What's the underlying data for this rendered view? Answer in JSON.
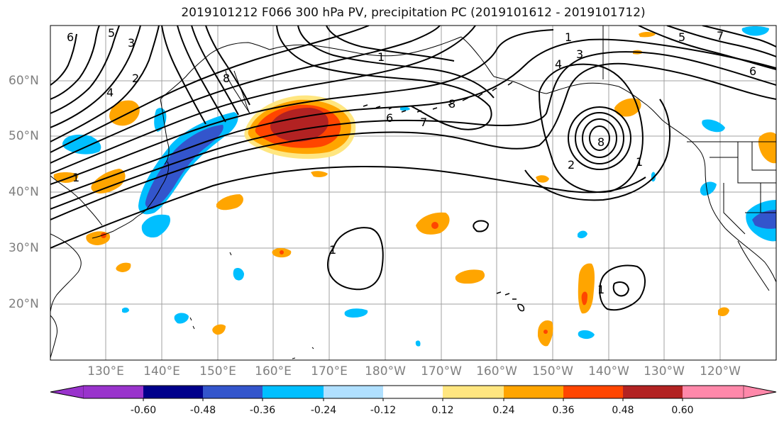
{
  "title": "2019101212 F066 300 hPa PV, precipitation PC (2019101612 - 2019101712)",
  "lat_labels": [
    "60°N",
    "50°N",
    "40°N",
    "30°N",
    "20°N"
  ],
  "lon_labels": [
    "130°E",
    "140°E",
    "150°E",
    "160°E",
    "170°E",
    "180°W",
    "170°W",
    "160°W",
    "150°W",
    "140°W",
    "130°W",
    "120°W"
  ],
  "colorbar": {
    "colors": [
      "#9933cc",
      "#00008b",
      "#3355cc",
      "#00bfff",
      "#b0e0ff",
      "#ffffff",
      "#ffe680",
      "#ffa500",
      "#ff4500",
      "#b22222",
      "#ff88aa"
    ],
    "tick_labels": [
      "-0.60",
      "-0.48",
      "-0.36",
      "-0.24",
      "-0.12",
      "0.12",
      "0.24",
      "0.36",
      "0.48",
      "0.60"
    ]
  },
  "contour_labels": [
    "6",
    "5",
    "3",
    "2",
    "4",
    "8",
    "1",
    "6",
    "7",
    "8",
    "1",
    "3",
    "4",
    "5",
    "7",
    "6",
    "1",
    "8",
    "2",
    "1",
    "1",
    "1"
  ],
  "colors": {
    "grid": "#a0a0a0",
    "axis_label": "#7f7f7f",
    "contour": "#000000"
  }
}
